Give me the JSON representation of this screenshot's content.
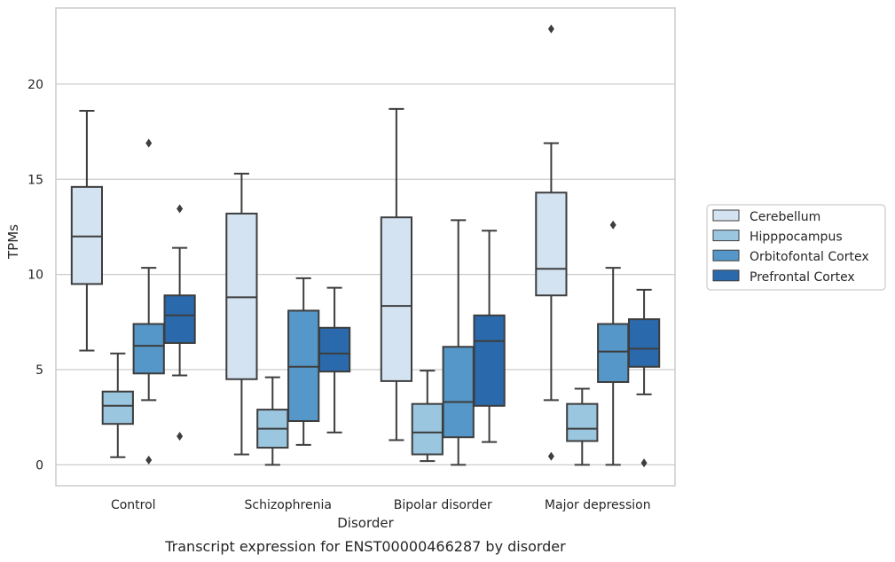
{
  "chart_data": {
    "type": "box",
    "caption": "Transcript expression for ENST00000466287 by disorder",
    "xlabel": "Disorder",
    "ylabel": "TPMs",
    "ylim": [
      -1.1,
      24
    ],
    "yticks": [
      0,
      5,
      10,
      15,
      20
    ],
    "grid": "horizontal",
    "legend_position": "right",
    "categories": [
      "Control",
      "Schizophrenia",
      "Bipolar disorder",
      "Major depression"
    ],
    "series": [
      {
        "name": "Cerebellum",
        "color": "#d4e3f2",
        "boxes": [
          {
            "whislo": 6.0,
            "q1": 9.5,
            "med": 12.0,
            "q3": 14.6,
            "whishi": 18.6,
            "fliers": []
          },
          {
            "whislo": 0.55,
            "q1": 4.5,
            "med": 8.8,
            "q3": 13.2,
            "whishi": 15.3,
            "fliers": []
          },
          {
            "whislo": 1.3,
            "q1": 4.4,
            "med": 8.35,
            "q3": 13.0,
            "whishi": 18.7,
            "fliers": []
          },
          {
            "whislo": 3.4,
            "q1": 8.9,
            "med": 10.3,
            "q3": 14.3,
            "whishi": 16.9,
            "fliers": [
              0.45,
              22.9
            ]
          }
        ]
      },
      {
        "name": "Hipppocampus",
        "color": "#9ac6df",
        "boxes": [
          {
            "whislo": 0.4,
            "q1": 2.15,
            "med": 3.1,
            "q3": 3.85,
            "whishi": 5.85,
            "fliers": []
          },
          {
            "whislo": 0.0,
            "q1": 0.9,
            "med": 1.9,
            "q3": 2.9,
            "whishi": 4.6,
            "fliers": []
          },
          {
            "whislo": 0.2,
            "q1": 0.55,
            "med": 1.7,
            "q3": 3.2,
            "whishi": 4.95,
            "fliers": []
          },
          {
            "whislo": 0.0,
            "q1": 1.25,
            "med": 1.9,
            "q3": 3.2,
            "whishi": 4.0,
            "fliers": []
          }
        ]
      },
      {
        "name": "Orbitofontal Cortex",
        "color": "#5597c8",
        "boxes": [
          {
            "whislo": 3.4,
            "q1": 4.8,
            "med": 6.25,
            "q3": 7.4,
            "whishi": 10.35,
            "fliers": [
              0.25,
              16.9
            ]
          },
          {
            "whislo": 1.05,
            "q1": 2.3,
            "med": 5.15,
            "q3": 8.1,
            "whishi": 9.8,
            "fliers": []
          },
          {
            "whislo": 0.0,
            "q1": 1.45,
            "med": 3.3,
            "q3": 6.2,
            "whishi": 12.85,
            "fliers": []
          },
          {
            "whislo": 0.0,
            "q1": 4.35,
            "med": 5.95,
            "q3": 7.4,
            "whishi": 10.35,
            "fliers": [
              12.6
            ]
          }
        ]
      },
      {
        "name": "Prefrontal Cortex",
        "color": "#2a69ac",
        "boxes": [
          {
            "whislo": 4.7,
            "q1": 6.4,
            "med": 7.85,
            "q3": 8.9,
            "whishi": 11.4,
            "fliers": [
              1.5,
              13.45
            ]
          },
          {
            "whislo": 1.7,
            "q1": 4.9,
            "med": 5.85,
            "q3": 7.2,
            "whishi": 9.3,
            "fliers": []
          },
          {
            "whislo": 1.2,
            "q1": 3.1,
            "med": 6.5,
            "q3": 7.85,
            "whishi": 12.3,
            "fliers": []
          },
          {
            "whislo": 3.7,
            "q1": 5.15,
            "med": 6.1,
            "q3": 7.65,
            "whishi": 9.2,
            "fliers": [
              0.1
            ]
          }
        ]
      }
    ]
  }
}
